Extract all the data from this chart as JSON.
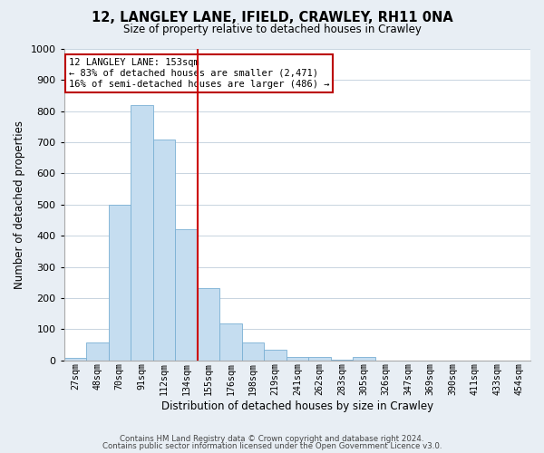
{
  "title": "12, LANGLEY LANE, IFIELD, CRAWLEY, RH11 0NA",
  "subtitle": "Size of property relative to detached houses in Crawley",
  "xlabel": "Distribution of detached houses by size in Crawley",
  "ylabel": "Number of detached properties",
  "bar_color": "#c5ddf0",
  "bar_edge_color": "#7ab0d4",
  "categories": [
    "27sqm",
    "48sqm",
    "70sqm",
    "91sqm",
    "112sqm",
    "134sqm",
    "155sqm",
    "176sqm",
    "198sqm",
    "219sqm",
    "241sqm",
    "262sqm",
    "283sqm",
    "305sqm",
    "326sqm",
    "347sqm",
    "369sqm",
    "390sqm",
    "411sqm",
    "433sqm",
    "454sqm"
  ],
  "values": [
    7,
    57,
    500,
    820,
    710,
    420,
    233,
    118,
    57,
    35,
    12,
    10,
    1,
    12,
    0,
    0,
    0,
    0,
    0,
    0,
    0
  ],
  "ylim": [
    0,
    1000
  ],
  "yticks": [
    0,
    100,
    200,
    300,
    400,
    500,
    600,
    700,
    800,
    900,
    1000
  ],
  "red_line_index": 6,
  "annotation_title": "12 LANGLEY LANE: 153sqm",
  "annotation_line1": "← 83% of detached houses are smaller (2,471)",
  "annotation_line2": "16% of semi-detached houses are larger (486) →",
  "footer1": "Contains HM Land Registry data © Crown copyright and database right 2024.",
  "footer2": "Contains public sector information licensed under the Open Government Licence v3.0.",
  "background_color": "#e8eef4",
  "plot_bg_color": "#ffffff",
  "grid_color": "#c8d4e0"
}
